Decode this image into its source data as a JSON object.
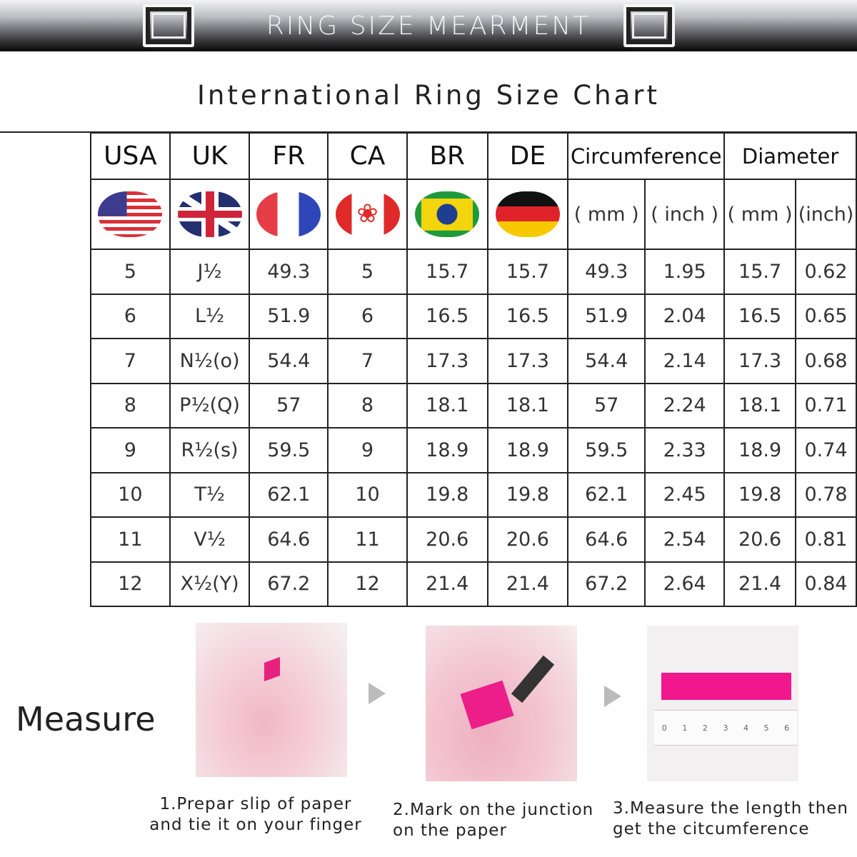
{
  "banner": {
    "title": "RING SIZE MEARMENT"
  },
  "chart_title": "International Ring Size Chart",
  "table": {
    "headers": [
      "USA",
      "UK",
      "FR",
      "CA",
      "BR",
      "DE",
      "Circumference",
      "Diameter"
    ],
    "flags": [
      "usa-flag-icon",
      "uk-flag-icon",
      "france-flag-icon",
      "canada-flag-icon",
      "brazil-flag-icon",
      "germany-flag-icon"
    ],
    "units": [
      "( mm )",
      "( inch )",
      "( mm )",
      "(inch)"
    ],
    "rows": [
      [
        "5",
        "J½",
        "49.3",
        "5",
        "15.7",
        "15.7",
        "49.3",
        "1.95",
        "15.7",
        "0.62"
      ],
      [
        "6",
        "L½",
        "51.9",
        "6",
        "16.5",
        "16.5",
        "51.9",
        "2.04",
        "16.5",
        "0.65"
      ],
      [
        "7",
        "N½(o)",
        "54.4",
        "7",
        "17.3",
        "17.3",
        "54.4",
        "2.14",
        "17.3",
        "0.68"
      ],
      [
        "8",
        "P½(Q)",
        "57",
        "8",
        "18.1",
        "18.1",
        "57",
        "2.24",
        "18.1",
        "0.71"
      ],
      [
        "9",
        "R½(s)",
        "59.5",
        "9",
        "18.9",
        "18.9",
        "59.5",
        "2.33",
        "18.9",
        "0.74"
      ],
      [
        "10",
        "T½",
        "62.1",
        "10",
        "19.8",
        "19.8",
        "62.1",
        "2.45",
        "19.8",
        "0.78"
      ],
      [
        "11",
        "V½",
        "64.6",
        "11",
        "20.6",
        "20.6",
        "64.6",
        "2.54",
        "20.6",
        "0.81"
      ],
      [
        "12",
        "X½(Y)",
        "67.2",
        "12",
        "21.4",
        "21.4",
        "67.2",
        "2.64",
        "21.4",
        "0.84"
      ]
    ]
  },
  "measure": {
    "label": "Measure",
    "ruler_ticks": [
      "0",
      "1",
      "2",
      "3",
      "4",
      "5",
      "6"
    ],
    "steps": [
      {
        "line1": "1.Prepar slip of paper",
        "line2": "and tie it on your finger"
      },
      {
        "line1": "2.Mark on the junction",
        "line2": "on the paper"
      },
      {
        "line1": "3.Measure the length then",
        "line2": "get the citcumference"
      }
    ]
  },
  "colors": {
    "accent_pink": "#f0188c",
    "border": "#222222"
  }
}
